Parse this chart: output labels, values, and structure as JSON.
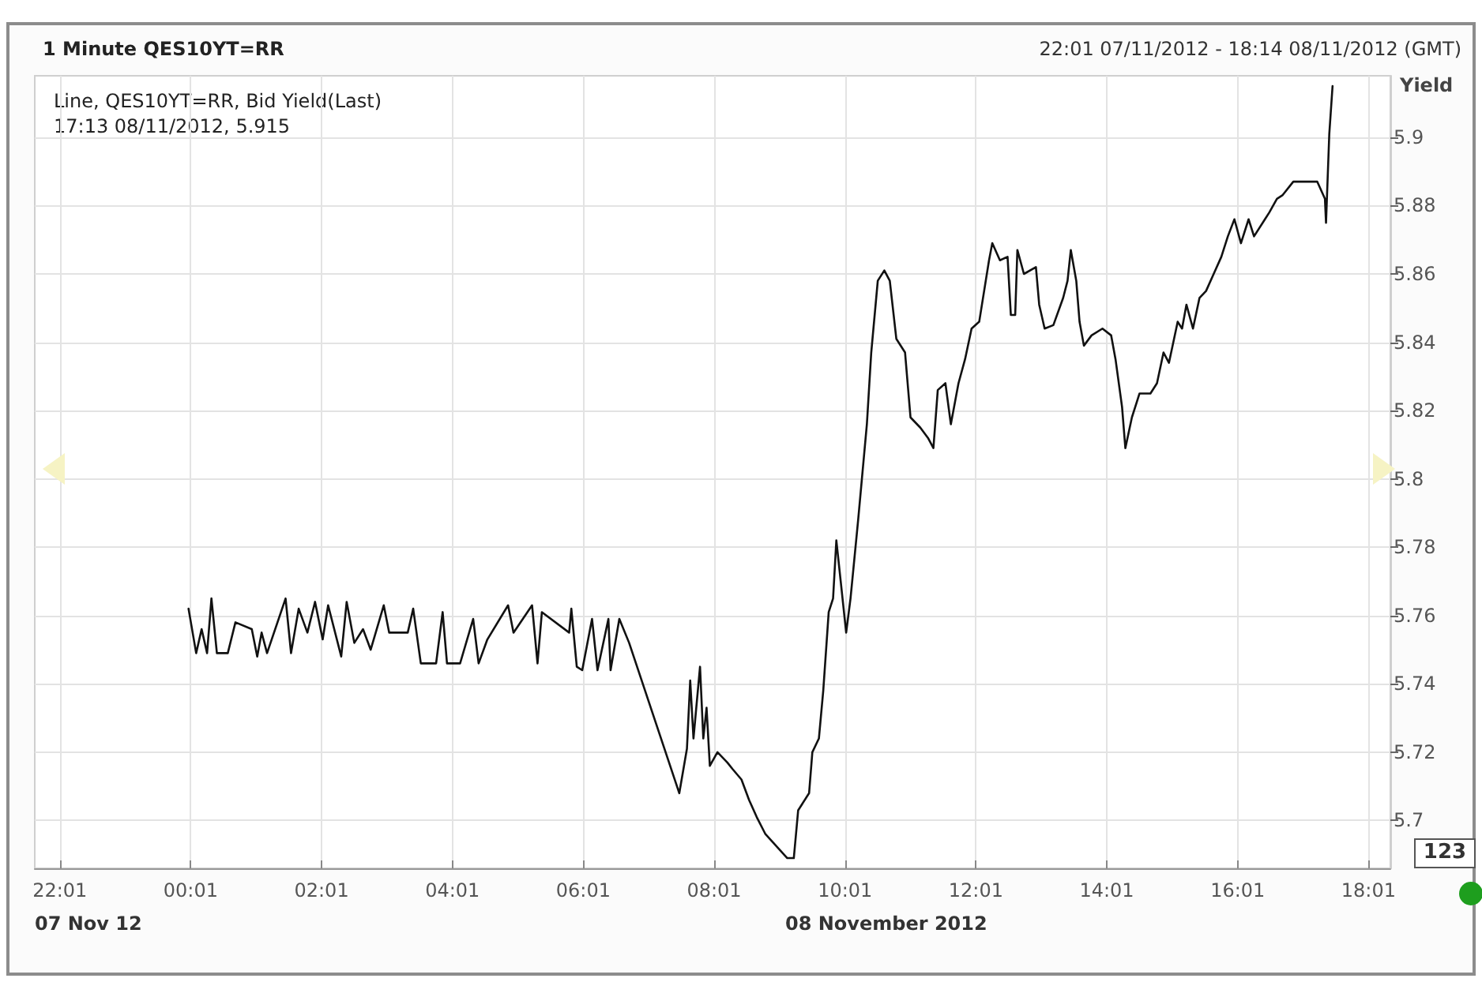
{
  "chart_data": {
    "type": "line",
    "title": "1 Minute QES10YT=RR",
    "subtitle": "22:01 07/11/2012 - 18:14 08/11/2012 (GMT)",
    "ylabel": "Yield",
    "annotations": [
      "Line, QES10YT=RR, Bid Yield(Last)",
      "17:13 08/11/2012, 5.915",
      "07 Nov 12",
      "08 November 2012",
      "123"
    ],
    "xlim": [
      "2012-11-07T21:38",
      "2012-11-08T18:21"
    ],
    "xticks": [
      {
        "value": "2012-11-07T22:01",
        "label": "22:01"
      },
      {
        "value": "2012-11-08T00:01",
        "label": "00:01"
      },
      {
        "value": "2012-11-08T02:01",
        "label": "02:01"
      },
      {
        "value": "2012-11-08T04:01",
        "label": "04:01"
      },
      {
        "value": "2012-11-08T06:01",
        "label": "06:01"
      },
      {
        "value": "2012-11-08T08:01",
        "label": "08:01"
      },
      {
        "value": "2012-11-08T10:01",
        "label": "10:01"
      },
      {
        "value": "2012-11-08T12:01",
        "label": "12:01"
      },
      {
        "value": "2012-11-08T14:01",
        "label": "14:01"
      },
      {
        "value": "2012-11-08T16:01",
        "label": "16:01"
      },
      {
        "value": "2012-11-08T18:01",
        "label": "18:01"
      }
    ],
    "ylim": [
      5.686,
      5.918
    ],
    "yticks": [
      5.7,
      5.72,
      5.74,
      5.76,
      5.78,
      5.8,
      5.82,
      5.84,
      5.86,
      5.88,
      5.9
    ],
    "grid": true,
    "marker": "none",
    "line_style": "solid",
    "series": [
      {
        "color": "#111111",
        "x": [
          "2012-11-07T23:59",
          "2012-11-08T00:06",
          "2012-11-08T00:11",
          "2012-11-08T00:16",
          "2012-11-08T00:20",
          "2012-11-08T00:25",
          "2012-11-08T00:35",
          "2012-11-08T00:42",
          "2012-11-08T00:57",
          "2012-11-08T01:02",
          "2012-11-08T01:06",
          "2012-11-08T01:11",
          "2012-11-08T01:28",
          "2012-11-08T01:33",
          "2012-11-08T01:40",
          "2012-11-08T01:48",
          "2012-11-08T01:55",
          "2012-11-08T02:02",
          "2012-11-08T02:07",
          "2012-11-08T02:19",
          "2012-11-08T02:24",
          "2012-11-08T02:31",
          "2012-11-08T02:39",
          "2012-11-08T02:46",
          "2012-11-08T02:58",
          "2012-11-08T03:03",
          "2012-11-08T03:20",
          "2012-11-08T03:25",
          "2012-11-08T03:32",
          "2012-11-08T03:46",
          "2012-11-08T03:52",
          "2012-11-08T03:56",
          "2012-11-08T04:08",
          "2012-11-08T04:20",
          "2012-11-08T04:25",
          "2012-11-08T04:33",
          "2012-11-08T04:52",
          "2012-11-08T04:57",
          "2012-11-08T05:14",
          "2012-11-08T05:19",
          "2012-11-08T05:23",
          "2012-11-08T05:48",
          "2012-11-08T05:50",
          "2012-11-08T05:55",
          "2012-11-08T06:00",
          "2012-11-08T06:09",
          "2012-11-08T06:14",
          "2012-11-08T06:24",
          "2012-11-08T06:26",
          "2012-11-08T06:34",
          "2012-11-08T06:43",
          "2012-11-08T07:29",
          "2012-11-08T07:36",
          "2012-11-08T07:39",
          "2012-11-08T07:42",
          "2012-11-08T07:48",
          "2012-11-08T07:51",
          "2012-11-08T07:54",
          "2012-11-08T07:57",
          "2012-11-08T08:04",
          "2012-11-08T08:13",
          "2012-11-08T08:18",
          "2012-11-08T08:26",
          "2012-11-08T08:33",
          "2012-11-08T08:40",
          "2012-11-08T08:48",
          "2012-11-08T09:08",
          "2012-11-08T09:14",
          "2012-11-08T09:18",
          "2012-11-08T09:28",
          "2012-11-08T09:31",
          "2012-11-08T09:37",
          "2012-11-08T09:41",
          "2012-11-08T09:46",
          "2012-11-08T09:50",
          "2012-11-08T09:53",
          "2012-11-08T09:57",
          "2012-11-08T10:02",
          "2012-11-08T10:06",
          "2012-11-08T10:13",
          "2012-11-08T10:21",
          "2012-11-08T10:25",
          "2012-11-08T10:31",
          "2012-11-08T10:37",
          "2012-11-08T10:42",
          "2012-11-08T10:48",
          "2012-11-08T10:56",
          "2012-11-08T11:01",
          "2012-11-08T11:10",
          "2012-11-08T11:17",
          "2012-11-08T11:22",
          "2012-11-08T11:26",
          "2012-11-08T11:33",
          "2012-11-08T11:38",
          "2012-11-08T11:45",
          "2012-11-08T11:51",
          "2012-11-08T11:57",
          "2012-11-08T12:04",
          "2012-11-08T12:13",
          "2012-11-08T12:16",
          "2012-11-08T12:23",
          "2012-11-08T12:30",
          "2012-11-08T12:33",
          "2012-11-08T12:37",
          "2012-11-08T12:39",
          "2012-11-08T12:45",
          "2012-11-08T12:56",
          "2012-11-08T12:59",
          "2012-11-08T13:04",
          "2012-11-08T13:12",
          "2012-11-08T13:21",
          "2012-11-08T13:25",
          "2012-11-08T13:28",
          "2012-11-08T13:33",
          "2012-11-08T13:36",
          "2012-11-08T13:40",
          "2012-11-08T13:47",
          "2012-11-08T13:57",
          "2012-11-08T14:05",
          "2012-11-08T14:09",
          "2012-11-08T14:15",
          "2012-11-08T14:18",
          "2012-11-08T14:24",
          "2012-11-08T14:31",
          "2012-11-08T14:41",
          "2012-11-08T14:47",
          "2012-11-08T14:53",
          "2012-11-08T14:58",
          "2012-11-08T15:06",
          "2012-11-08T15:10",
          "2012-11-08T15:14",
          "2012-11-08T15:20",
          "2012-11-08T15:26",
          "2012-11-08T15:32",
          "2012-11-08T15:39",
          "2012-11-08T15:46",
          "2012-11-08T15:52",
          "2012-11-08T15:58",
          "2012-11-08T16:04",
          "2012-11-08T16:11",
          "2012-11-08T16:16",
          "2012-11-08T16:26",
          "2012-11-08T16:30",
          "2012-11-08T16:37",
          "2012-11-08T16:42",
          "2012-11-08T16:52",
          "2012-11-08T17:14",
          "2012-11-08T17:21",
          "2012-11-08T17:22",
          "2012-11-08T17:25",
          "2012-11-08T17:28"
        ],
        "values": [
          5.762,
          5.749,
          5.756,
          5.749,
          5.765,
          5.749,
          5.749,
          5.758,
          5.756,
          5.748,
          5.755,
          5.749,
          5.765,
          5.749,
          5.762,
          5.755,
          5.764,
          5.753,
          5.763,
          5.748,
          5.764,
          5.752,
          5.756,
          5.75,
          5.763,
          5.755,
          5.755,
          5.762,
          5.746,
          5.746,
          5.761,
          5.746,
          5.746,
          5.759,
          5.746,
          5.753,
          5.763,
          5.755,
          5.763,
          5.746,
          5.761,
          5.755,
          5.762,
          5.745,
          5.744,
          5.759,
          5.744,
          5.759,
          5.744,
          5.759,
          5.752,
          5.708,
          5.721,
          5.741,
          5.724,
          5.745,
          5.724,
          5.733,
          5.716,
          5.72,
          5.717,
          5.715,
          5.712,
          5.706,
          5.701,
          5.696,
          5.689,
          5.689,
          5.703,
          5.708,
          5.72,
          5.724,
          5.738,
          5.761,
          5.765,
          5.782,
          5.77,
          5.755,
          5.765,
          5.788,
          5.816,
          5.837,
          5.858,
          5.861,
          5.858,
          5.841,
          5.837,
          5.818,
          5.815,
          5.812,
          5.809,
          5.826,
          5.828,
          5.816,
          5.828,
          5.835,
          5.844,
          5.846,
          5.864,
          5.869,
          5.864,
          5.865,
          5.848,
          5.848,
          5.867,
          5.86,
          5.862,
          5.851,
          5.844,
          5.845,
          5.853,
          5.858,
          5.867,
          5.858,
          5.846,
          5.839,
          5.842,
          5.844,
          5.842,
          5.835,
          5.821,
          5.809,
          5.818,
          5.825,
          5.825,
          5.828,
          5.837,
          5.834,
          5.846,
          5.844,
          5.851,
          5.844,
          5.853,
          5.855,
          5.86,
          5.865,
          5.871,
          5.876,
          5.869,
          5.876,
          5.871,
          5.876,
          5.878,
          5.882,
          5.883,
          5.887,
          5.887,
          5.882,
          5.875,
          5.901,
          5.915
        ]
      }
    ]
  }
}
